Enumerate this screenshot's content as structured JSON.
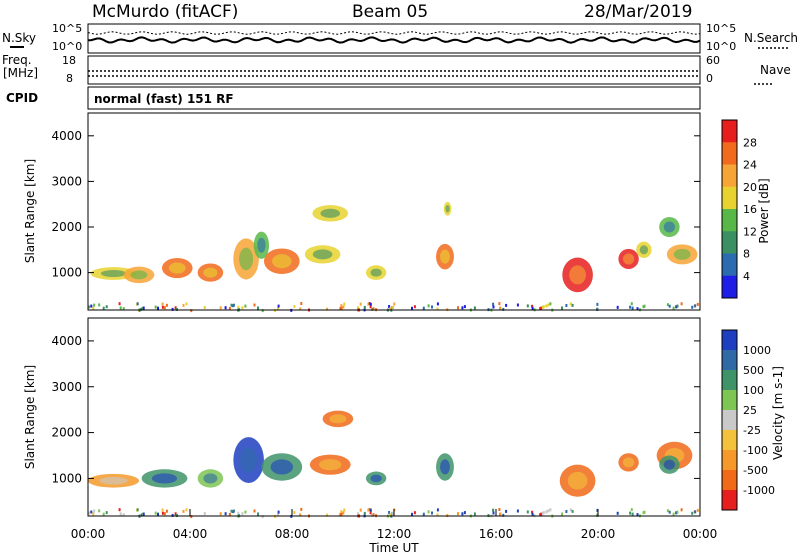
{
  "header": {
    "station": "McMurdo (fitACF)",
    "beam": "Beam 05",
    "date": "28/Mar/2019"
  },
  "top_panels": {
    "nsky_label": "N.Sky",
    "nsearch_label": "N.Search",
    "noise_ticks": [
      "10^5",
      "10^0"
    ],
    "freq_label_1": "Freq.",
    "freq_label_2": "[MHz]",
    "freq_ticks": [
      "18",
      "8"
    ],
    "nave_label": "Nave",
    "nave_ticks": [
      "60",
      "0"
    ],
    "cpid_label": "CPID",
    "cpid_value": "normal (fast) 151 RF"
  },
  "chart_data": [
    {
      "type": "heatmap",
      "name": "power",
      "ylabel": "Slant Range [km]",
      "yticks": [
        "1000",
        "2000",
        "3000",
        "4000"
      ],
      "ylim": [
        180,
        4500
      ],
      "xlim": [
        0,
        24
      ],
      "colorbar_label": "Power [dB]",
      "colorbar_ticks": [
        "4",
        "8",
        "12",
        "16",
        "20",
        "24",
        "28"
      ],
      "colors": [
        "#1e1ee6",
        "#2b6bb0",
        "#3a8f63",
        "#57b848",
        "#e8d22f",
        "#f7a436",
        "#f26a1c",
        "#e61e1e"
      ],
      "blobs": [
        {
          "t": 1.0,
          "r": 980,
          "dt": 0.9,
          "dr": 140,
          "c": 4
        },
        {
          "t": 2.0,
          "r": 950,
          "dt": 0.6,
          "dr": 180,
          "c": 5
        },
        {
          "t": 3.5,
          "r": 1100,
          "dt": 0.6,
          "dr": 220,
          "c": 6
        },
        {
          "t": 4.8,
          "r": 1000,
          "dt": 0.5,
          "dr": 200,
          "c": 6
        },
        {
          "t": 6.2,
          "r": 1300,
          "dt": 0.5,
          "dr": 450,
          "c": 5
        },
        {
          "t": 6.8,
          "r": 1600,
          "dt": 0.3,
          "dr": 300,
          "c": 3
        },
        {
          "t": 7.6,
          "r": 1250,
          "dt": 0.7,
          "dr": 280,
          "c": 6
        },
        {
          "t": 9.2,
          "r": 1400,
          "dt": 0.7,
          "dr": 200,
          "c": 4
        },
        {
          "t": 9.5,
          "r": 2300,
          "dt": 0.7,
          "dr": 180,
          "c": 4
        },
        {
          "t": 11.3,
          "r": 1000,
          "dt": 0.4,
          "dr": 160,
          "c": 4
        },
        {
          "t": 14.0,
          "r": 1350,
          "dt": 0.35,
          "dr": 280,
          "c": 6
        },
        {
          "t": 14.1,
          "r": 2400,
          "dt": 0.15,
          "dr": 150,
          "c": 4
        },
        {
          "t": 19.2,
          "r": 950,
          "dt": 0.6,
          "dr": 380,
          "c": 7
        },
        {
          "t": 21.2,
          "r": 1300,
          "dt": 0.4,
          "dr": 220,
          "c": 7
        },
        {
          "t": 21.8,
          "r": 1500,
          "dt": 0.3,
          "dr": 180,
          "c": 4
        },
        {
          "t": 23.3,
          "r": 1400,
          "dt": 0.6,
          "dr": 220,
          "c": 5
        },
        {
          "t": 22.8,
          "r": 2000,
          "dt": 0.4,
          "dr": 220,
          "c": 3
        }
      ]
    },
    {
      "type": "heatmap",
      "name": "velocity",
      "ylabel": "Slant Range [km]",
      "yticks": [
        "1000",
        "2000",
        "3000",
        "4000"
      ],
      "ylim": [
        180,
        4500
      ],
      "xlim": [
        0,
        24
      ],
      "xlabel": "Time UT",
      "xticks": [
        "00:00",
        "04:00",
        "08:00",
        "12:00",
        "16:00",
        "20:00",
        "00:00"
      ],
      "colorbar_label": "Velocity [m s-1]",
      "colorbar_ticks": [
        "1000",
        "500",
        "100",
        "25",
        "-25",
        "-100",
        "-500",
        "-1000"
      ],
      "colors": [
        "#1e3fc0",
        "#2f6aa7",
        "#3e9468",
        "#7dc653",
        "#c9c9c9",
        "#f4c23a",
        "#f59a2a",
        "#f06a18",
        "#e61e1e"
      ],
      "blobs": [
        {
          "t": 1.0,
          "r": 950,
          "dt": 1.0,
          "dr": 150,
          "c": 6
        },
        {
          "t": 3.0,
          "r": 1000,
          "dt": 0.9,
          "dr": 200,
          "c": 2
        },
        {
          "t": 4.8,
          "r": 1000,
          "dt": 0.5,
          "dr": 200,
          "c": 3
        },
        {
          "t": 6.3,
          "r": 1400,
          "dt": 0.6,
          "dr": 500,
          "c": 0
        },
        {
          "t": 7.6,
          "r": 1250,
          "dt": 0.8,
          "dr": 300,
          "c": 2
        },
        {
          "t": 9.5,
          "r": 1300,
          "dt": 0.8,
          "dr": 220,
          "c": 7
        },
        {
          "t": 9.8,
          "r": 2300,
          "dt": 0.6,
          "dr": 180,
          "c": 7
        },
        {
          "t": 11.3,
          "r": 1000,
          "dt": 0.4,
          "dr": 150,
          "c": 2
        },
        {
          "t": 14.0,
          "r": 1250,
          "dt": 0.35,
          "dr": 300,
          "c": 2
        },
        {
          "t": 19.2,
          "r": 950,
          "dt": 0.7,
          "dr": 350,
          "c": 7
        },
        {
          "t": 21.2,
          "r": 1350,
          "dt": 0.4,
          "dr": 200,
          "c": 7
        },
        {
          "t": 23.0,
          "r": 1500,
          "dt": 0.7,
          "dr": 300,
          "c": 7
        },
        {
          "t": 22.8,
          "r": 1300,
          "dt": 0.4,
          "dr": 200,
          "c": 2
        }
      ]
    }
  ]
}
